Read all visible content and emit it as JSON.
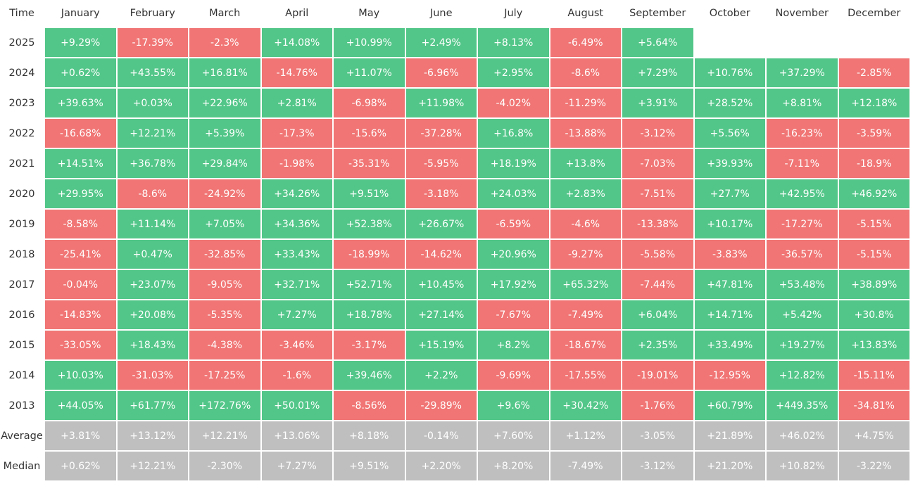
{
  "table": {
    "header": [
      "Time",
      "January",
      "February",
      "March",
      "April",
      "May",
      "June",
      "July",
      "August",
      "September",
      "October",
      "November",
      "December"
    ],
    "rows": [
      {
        "label": "2025",
        "cells": [
          "+9.29%",
          "-17.39%",
          "-2.3%",
          "+14.08%",
          "+10.99%",
          "+2.49%",
          "+8.13%",
          "-6.49%",
          "+5.64%"
        ]
      },
      {
        "label": "2024",
        "cells": [
          "+0.62%",
          "+43.55%",
          "+16.81%",
          "-14.76%",
          "+11.07%",
          "-6.96%",
          "+2.95%",
          "-8.6%",
          "+7.29%",
          "+10.76%",
          "+37.29%",
          "-2.85%"
        ]
      },
      {
        "label": "2023",
        "cells": [
          "+39.63%",
          "+0.03%",
          "+22.96%",
          "+2.81%",
          "-6.98%",
          "+11.98%",
          "-4.02%",
          "-11.29%",
          "+3.91%",
          "+28.52%",
          "+8.81%",
          "+12.18%"
        ]
      },
      {
        "label": "2022",
        "cells": [
          "-16.68%",
          "+12.21%",
          "+5.39%",
          "-17.3%",
          "-15.6%",
          "-37.28%",
          "+16.8%",
          "-13.88%",
          "-3.12%",
          "+5.56%",
          "-16.23%",
          "-3.59%"
        ]
      },
      {
        "label": "2021",
        "cells": [
          "+14.51%",
          "+36.78%",
          "+29.84%",
          "-1.98%",
          "-35.31%",
          "-5.95%",
          "+18.19%",
          "+13.8%",
          "-7.03%",
          "+39.93%",
          "-7.11%",
          "-18.9%"
        ]
      },
      {
        "label": "2020",
        "cells": [
          "+29.95%",
          "-8.6%",
          "-24.92%",
          "+34.26%",
          "+9.51%",
          "-3.18%",
          "+24.03%",
          "+2.83%",
          "-7.51%",
          "+27.7%",
          "+42.95%",
          "+46.92%"
        ]
      },
      {
        "label": "2019",
        "cells": [
          "-8.58%",
          "+11.14%",
          "+7.05%",
          "+34.36%",
          "+52.38%",
          "+26.67%",
          "-6.59%",
          "-4.6%",
          "-13.38%",
          "+10.17%",
          "-17.27%",
          "-5.15%"
        ]
      },
      {
        "label": "2018",
        "cells": [
          "-25.41%",
          "+0.47%",
          "-32.85%",
          "+33.43%",
          "-18.99%",
          "-14.62%",
          "+20.96%",
          "-9.27%",
          "-5.58%",
          "-3.83%",
          "-36.57%",
          "-5.15%"
        ]
      },
      {
        "label": "2017",
        "cells": [
          "-0.04%",
          "+23.07%",
          "-9.05%",
          "+32.71%",
          "+52.71%",
          "+10.45%",
          "+17.92%",
          "+65.32%",
          "-7.44%",
          "+47.81%",
          "+53.48%",
          "+38.89%"
        ]
      },
      {
        "label": "2016",
        "cells": [
          "-14.83%",
          "+20.08%",
          "-5.35%",
          "+7.27%",
          "+18.78%",
          "+27.14%",
          "-7.67%",
          "-7.49%",
          "+6.04%",
          "+14.71%",
          "+5.42%",
          "+30.8%"
        ]
      },
      {
        "label": "2015",
        "cells": [
          "-33.05%",
          "+18.43%",
          "-4.38%",
          "-3.46%",
          "-3.17%",
          "+15.19%",
          "+8.2%",
          "-18.67%",
          "+2.35%",
          "+33.49%",
          "+19.27%",
          "+13.83%"
        ]
      },
      {
        "label": "2014",
        "cells": [
          "+10.03%",
          "-31.03%",
          "-17.25%",
          "-1.6%",
          "+39.46%",
          "+2.2%",
          "-9.69%",
          "-17.55%",
          "-19.01%",
          "-12.95%",
          "+12.82%",
          "-15.11%"
        ]
      },
      {
        "label": "2013",
        "cells": [
          "+44.05%",
          "+61.77%",
          "+172.76%",
          "+50.01%",
          "-8.56%",
          "-29.89%",
          "+9.6%",
          "+30.42%",
          "-1.76%",
          "+60.79%",
          "+449.35%",
          "-34.81%"
        ]
      }
    ],
    "summary_rows": [
      {
        "label": "Average",
        "cells": [
          "+3.81%",
          "+13.12%",
          "+12.21%",
          "+13.06%",
          "+8.18%",
          "-0.14%",
          "+7.60%",
          "+1.12%",
          "-3.05%",
          "+21.89%",
          "+46.02%",
          "+4.75%"
        ]
      },
      {
        "label": "Median",
        "cells": [
          "+0.62%",
          "+12.21%",
          "-2.30%",
          "+7.27%",
          "+9.51%",
          "+2.20%",
          "+8.20%",
          "-7.49%",
          "-3.12%",
          "+21.20%",
          "+10.82%",
          "-3.22%"
        ]
      }
    ]
  }
}
